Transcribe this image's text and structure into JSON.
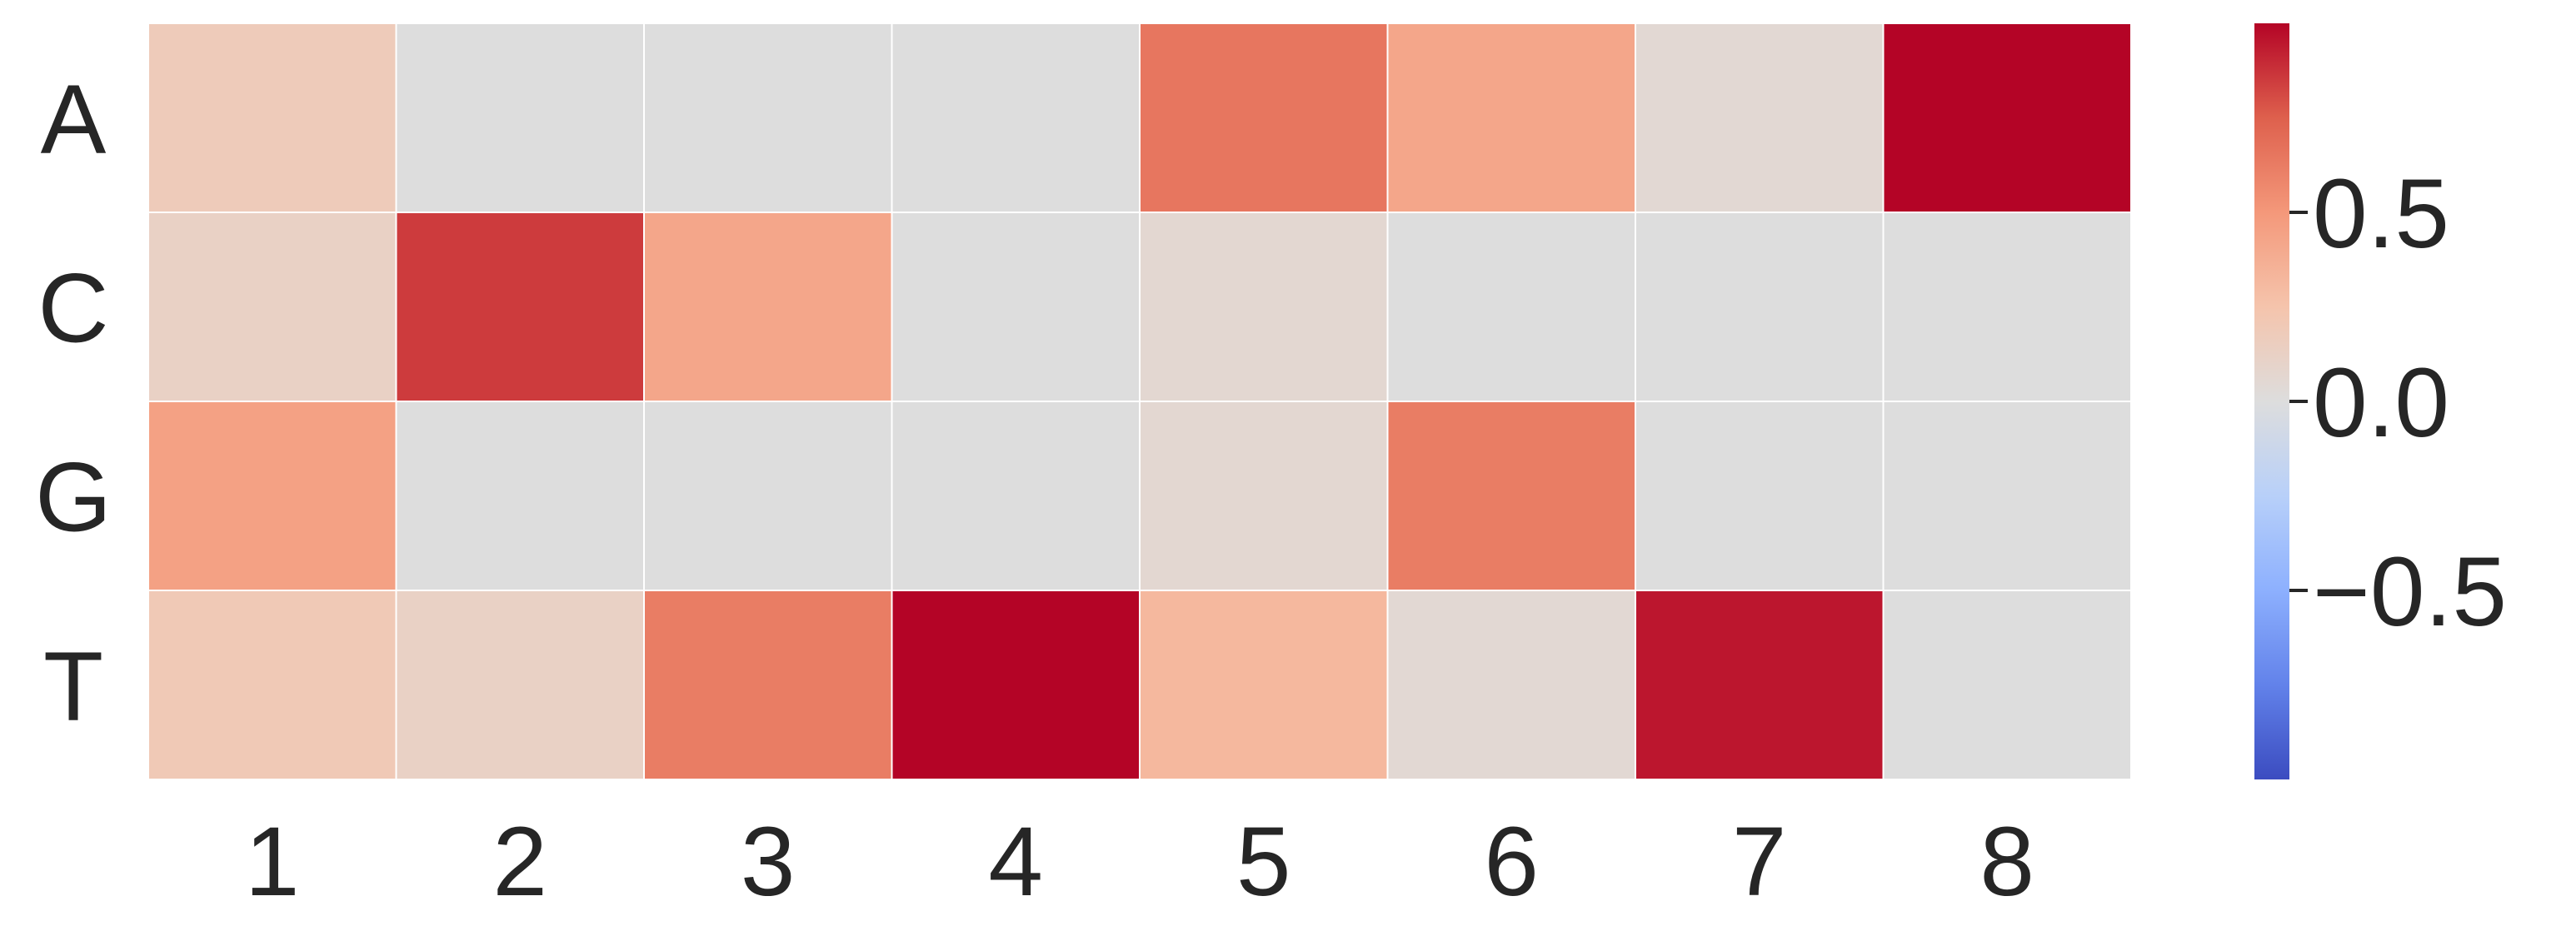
{
  "chart_data": {
    "type": "heatmap",
    "title": "",
    "xlabel": "",
    "ylabel": "",
    "rows": [
      "A",
      "C",
      "G",
      "T"
    ],
    "columns": [
      "1",
      "2",
      "3",
      "4",
      "5",
      "6",
      "7",
      "8"
    ],
    "values": [
      [
        0.18,
        0.0,
        0.0,
        0.0,
        0.65,
        0.42,
        0.05,
        1.0
      ],
      [
        0.12,
        0.85,
        0.42,
        0.0,
        0.06,
        0.0,
        0.0,
        0.0
      ],
      [
        0.45,
        0.0,
        0.0,
        0.0,
        0.06,
        0.62,
        0.0,
        0.0
      ],
      [
        0.2,
        0.12,
        0.62,
        1.0,
        0.32,
        0.05,
        0.95,
        0.0
      ]
    ],
    "colormap": "coolwarm",
    "vmin": -1.0,
    "vmax": 1.0,
    "grid": true,
    "gridline_color": "#ffffff",
    "colorbar": {
      "ticks": [
        0.5,
        0.0,
        -0.5
      ],
      "tick_labels": [
        "0.5",
        "0.0",
        "−0.5"
      ],
      "position": "right"
    }
  }
}
